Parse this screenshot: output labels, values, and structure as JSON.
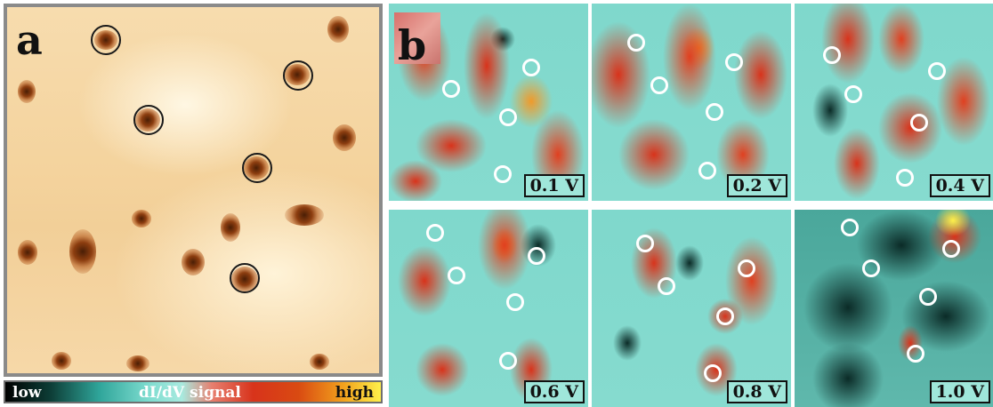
{
  "panel_a": {
    "label": "a",
    "colors": {
      "frame": "#8a8a8a",
      "background": "#f5d7a4",
      "spot": "#7a3410",
      "ring": "#1a1a1a"
    }
  },
  "colorbar": {
    "low": "low",
    "title": "dI/dV signal",
    "high": "high",
    "colors": [
      "#000000",
      "#2fa59a",
      "#a8eadf",
      "#d8331b",
      "#f2a11c",
      "#fff04a"
    ]
  },
  "panel_b": {
    "label": "b",
    "tiles": [
      {
        "voltage": "0.1 V"
      },
      {
        "voltage": "0.2 V"
      },
      {
        "voltage": "0.4 V"
      },
      {
        "voltage": "0.6 V"
      },
      {
        "voltage": "0.8 V"
      },
      {
        "voltage": "1.0 V"
      }
    ],
    "colors": {
      "cyan": "#7fd8cc",
      "red": "#d8331b",
      "orange": "#f09a2a",
      "dark": "#0b2b27",
      "ring": "#ffffff",
      "label_bg": "#9fe6da"
    }
  }
}
